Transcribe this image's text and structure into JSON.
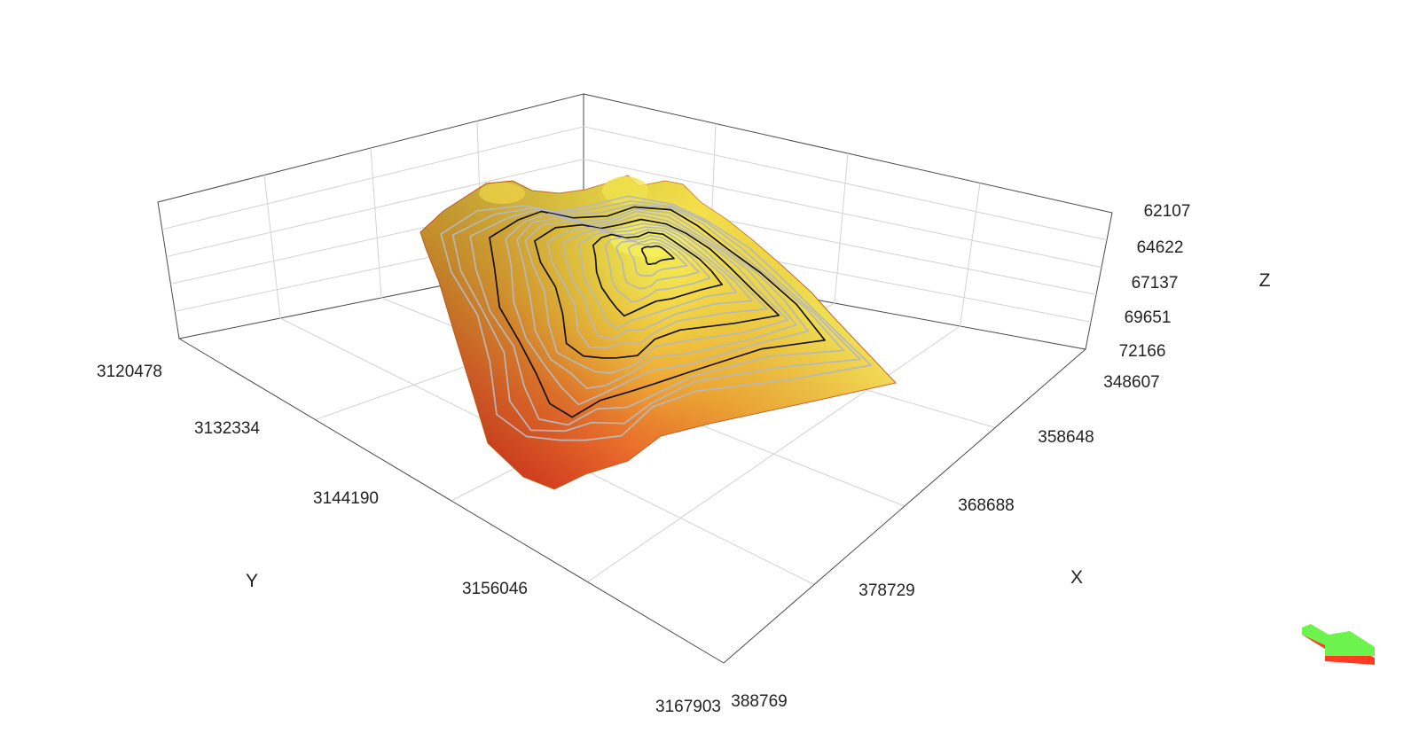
{
  "chart_data": {
    "type": "surface",
    "surface_style": "orange-to-yellow elevation gradient with contour lines",
    "colors": {
      "low": "#d8301c",
      "mid": "#ec8a2a",
      "high": "#f2ec48",
      "contour_major": "#111111",
      "contour_minor": "#b8b8b8"
    },
    "x_axis": {
      "label": "X",
      "ticks": [
        "348607",
        "358648",
        "368688",
        "378729",
        "388769"
      ]
    },
    "y_axis": {
      "label": "Y",
      "ticks": [
        "3120478",
        "3132334",
        "3144190",
        "3156046",
        "3167903"
      ]
    },
    "z_axis": {
      "label": "Z",
      "ticks": [
        "62107",
        "64622",
        "67137",
        "69651",
        "72166"
      ]
    },
    "contours": {
      "count": 16,
      "major_every": 4
    },
    "orientation_widget": "green-red arrow"
  }
}
